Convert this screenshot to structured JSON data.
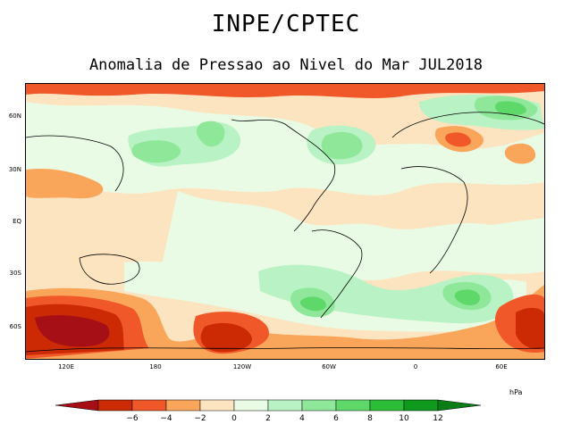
{
  "header": {
    "title": "INPE/CPTEC",
    "subtitle": "Anomalia de Pressao ao Nivel do Mar JUL2018"
  },
  "map": {
    "lat_labels": [
      "60N",
      "30N",
      "EQ",
      "30S",
      "60S"
    ],
    "lon_labels": [
      "120E",
      "180",
      "120W",
      "60W",
      "0",
      "60E"
    ]
  },
  "legend": {
    "unit": "hPa",
    "ticks": [
      "−6",
      "−4",
      "−2",
      "0",
      "2",
      "4",
      "6",
      "8",
      "10",
      "12"
    ],
    "colors": [
      "#a50f15",
      "#cb2a04",
      "#f0582a",
      "#f9a65a",
      "#fde4c0",
      "#e9fbe4",
      "#b9f2c4",
      "#8fe89a",
      "#5fd86a",
      "#2cbd38",
      "#109a1d",
      "#0a7e15"
    ]
  }
}
